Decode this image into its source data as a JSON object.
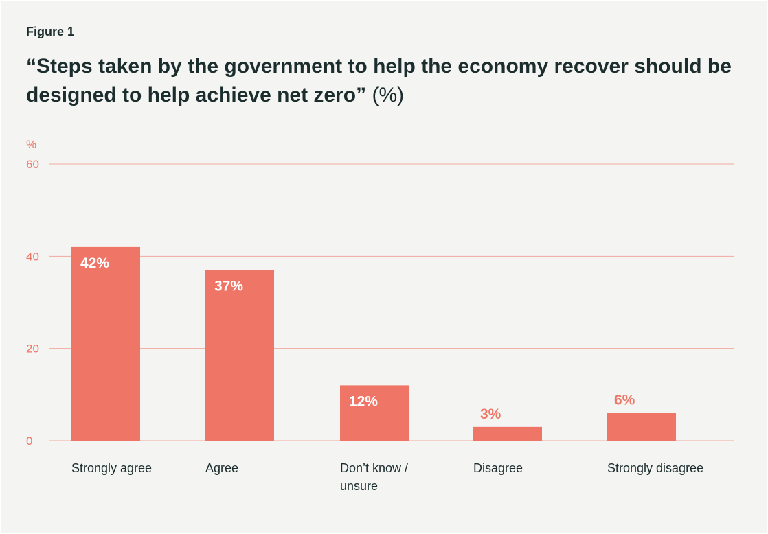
{
  "figure_label": "Figure 1",
  "title_main": "“Steps taken by the government to help the economy recover should be designed to help achieve net zero”",
  "title_unit": "(%)",
  "colors": {
    "bar": "#ef7566",
    "grid": "#f3a99e",
    "background": "#f4f4f3",
    "text": "#1c2d2d"
  },
  "chart_data": {
    "type": "bar",
    "categories": [
      "Strongly agree",
      "Agree",
      "Don’t know / unsure",
      "Disagree",
      "Strongly disagree"
    ],
    "category_lines": [
      [
        "Strongly agree"
      ],
      [
        "Agree"
      ],
      [
        "Don’t know /",
        "unsure"
      ],
      [
        "Disagree"
      ],
      [
        "Strongly disagree"
      ]
    ],
    "values": [
      42,
      37,
      12,
      3,
      6
    ],
    "value_labels": [
      "42%",
      "37%",
      "12%",
      "3%",
      "6%"
    ],
    "ylabel": "%",
    "ylim": [
      0,
      60
    ],
    "yticks": [
      0,
      20,
      40,
      60
    ],
    "ytick_labels": [
      "0",
      "20",
      "40",
      "60"
    ],
    "grid": true,
    "legend": "none"
  }
}
